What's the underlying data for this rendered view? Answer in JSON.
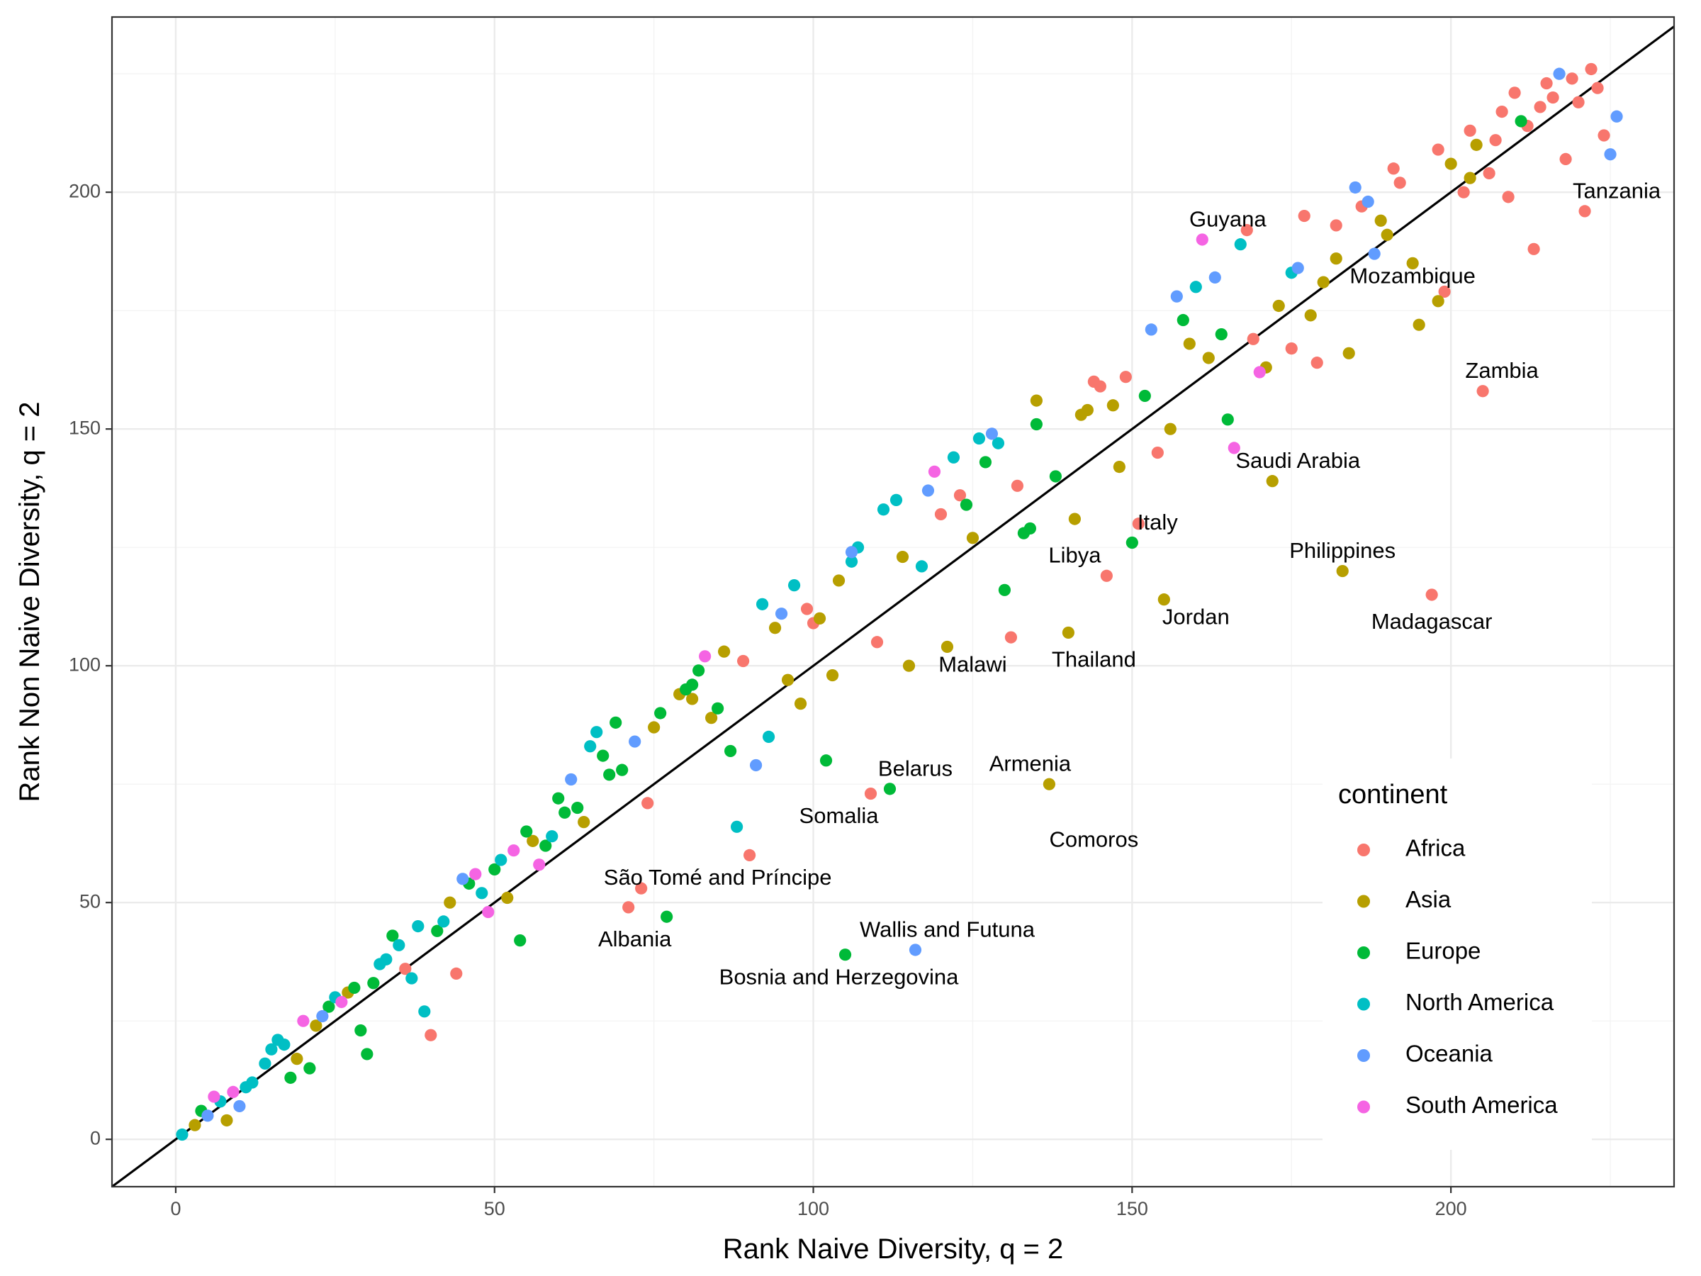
{
  "chart_data": {
    "type": "scatter",
    "xlabel": "Rank Naive Diversity, q = 2",
    "ylabel": "Rank Non Naive Diversity, q = 2",
    "xlim": [
      -10,
      235
    ],
    "ylim": [
      -10,
      237
    ],
    "x_ticks": [
      0,
      50,
      100,
      150,
      200
    ],
    "y_ticks": [
      0,
      50,
      100,
      150,
      200
    ],
    "grid": true,
    "reference_line": "y = x",
    "legend": {
      "title": "continent",
      "placement": "right-bottom inside",
      "entries": [
        {
          "name": "Africa",
          "color": "#F8766D"
        },
        {
          "name": "Asia",
          "color": "#B79F00"
        },
        {
          "name": "Europe",
          "color": "#00BA38"
        },
        {
          "name": "North America",
          "color": "#00BFC4"
        },
        {
          "name": "Oceania",
          "color": "#619CFF"
        },
        {
          "name": "South America",
          "color": "#F564E3"
        }
      ]
    },
    "series": [
      {
        "name": "Africa",
        "color": "#F8766D",
        "points": [
          [
            36,
            36
          ],
          [
            40,
            22
          ],
          [
            44,
            35
          ],
          [
            71,
            49
          ],
          [
            73,
            53
          ],
          [
            74,
            71
          ],
          [
            90,
            60
          ],
          [
            109,
            73
          ],
          [
            89,
            101
          ],
          [
            99,
            112
          ],
          [
            100,
            109
          ],
          [
            110,
            105
          ],
          [
            120,
            132
          ],
          [
            123,
            136
          ],
          [
            131,
            106
          ],
          [
            132,
            138
          ],
          [
            144,
            160
          ],
          [
            145,
            159
          ],
          [
            146,
            119
          ],
          [
            149,
            161
          ],
          [
            151,
            130
          ],
          [
            154,
            145
          ],
          [
            168,
            192
          ],
          [
            169,
            169
          ],
          [
            175,
            167
          ],
          [
            177,
            195
          ],
          [
            179,
            164
          ],
          [
            182,
            193
          ],
          [
            186,
            197
          ],
          [
            191,
            205
          ],
          [
            192,
            202
          ],
          [
            197,
            115
          ],
          [
            198,
            209
          ],
          [
            199,
            179
          ],
          [
            202,
            200
          ],
          [
            203,
            213
          ],
          [
            205,
            158
          ],
          [
            206,
            204
          ],
          [
            207,
            211
          ],
          [
            208,
            217
          ],
          [
            209,
            199
          ],
          [
            210,
            221
          ],
          [
            212,
            214
          ],
          [
            213,
            188
          ],
          [
            214,
            218
          ],
          [
            215,
            223
          ],
          [
            216,
            220
          ],
          [
            218,
            207
          ],
          [
            219,
            224
          ],
          [
            220,
            219
          ],
          [
            221,
            196
          ],
          [
            222,
            226
          ],
          [
            223,
            222
          ],
          [
            224,
            212
          ]
        ]
      },
      {
        "name": "Asia",
        "color": "#B79F00",
        "points": [
          [
            3,
            3
          ],
          [
            8,
            4
          ],
          [
            19,
            17
          ],
          [
            22,
            24
          ],
          [
            27,
            31
          ],
          [
            43,
            50
          ],
          [
            52,
            51
          ],
          [
            56,
            63
          ],
          [
            64,
            67
          ],
          [
            75,
            87
          ],
          [
            79,
            94
          ],
          [
            81,
            93
          ],
          [
            84,
            89
          ],
          [
            86,
            103
          ],
          [
            94,
            108
          ],
          [
            96,
            97
          ],
          [
            98,
            92
          ],
          [
            101,
            110
          ],
          [
            103,
            98
          ],
          [
            104,
            118
          ],
          [
            114,
            123
          ],
          [
            115,
            100
          ],
          [
            121,
            104
          ],
          [
            125,
            127
          ],
          [
            135,
            156
          ],
          [
            137,
            75
          ],
          [
            140,
            107
          ],
          [
            141,
            131
          ],
          [
            142,
            153
          ],
          [
            143,
            154
          ],
          [
            147,
            155
          ],
          [
            148,
            142
          ],
          [
            155,
            114
          ],
          [
            156,
            150
          ],
          [
            159,
            168
          ],
          [
            162,
            165
          ],
          [
            171,
            163
          ],
          [
            172,
            139
          ],
          [
            173,
            176
          ],
          [
            178,
            174
          ],
          [
            180,
            181
          ],
          [
            182,
            186
          ],
          [
            183,
            120
          ],
          [
            184,
            166
          ],
          [
            189,
            194
          ],
          [
            190,
            191
          ],
          [
            194,
            185
          ],
          [
            195,
            172
          ],
          [
            198,
            177
          ],
          [
            200,
            206
          ],
          [
            203,
            203
          ],
          [
            204,
            210
          ]
        ]
      },
      {
        "name": "Europe",
        "color": "#00BA38",
        "points": [
          [
            4,
            6
          ],
          [
            18,
            13
          ],
          [
            21,
            15
          ],
          [
            24,
            28
          ],
          [
            28,
            32
          ],
          [
            29,
            23
          ],
          [
            30,
            18
          ],
          [
            31,
            33
          ],
          [
            34,
            43
          ],
          [
            41,
            44
          ],
          [
            46,
            54
          ],
          [
            50,
            57
          ],
          [
            54,
            42
          ],
          [
            55,
            65
          ],
          [
            58,
            62
          ],
          [
            60,
            72
          ],
          [
            61,
            69
          ],
          [
            63,
            70
          ],
          [
            67,
            81
          ],
          [
            68,
            77
          ],
          [
            69,
            88
          ],
          [
            70,
            78
          ],
          [
            76,
            90
          ],
          [
            77,
            47
          ],
          [
            80,
            95
          ],
          [
            81,
            96
          ],
          [
            82,
            99
          ],
          [
            85,
            91
          ],
          [
            87,
            82
          ],
          [
            102,
            80
          ],
          [
            105,
            39
          ],
          [
            112,
            74
          ],
          [
            124,
            134
          ],
          [
            127,
            143
          ],
          [
            130,
            116
          ],
          [
            133,
            128
          ],
          [
            134,
            129
          ],
          [
            135,
            151
          ],
          [
            138,
            140
          ],
          [
            150,
            126
          ],
          [
            152,
            157
          ],
          [
            158,
            173
          ],
          [
            164,
            170
          ],
          [
            165,
            152
          ],
          [
            211,
            215
          ]
        ]
      },
      {
        "name": "North America",
        "color": "#00BFC4",
        "points": [
          [
            1,
            1
          ],
          [
            7,
            8
          ],
          [
            11,
            11
          ],
          [
            12,
            12
          ],
          [
            14,
            16
          ],
          [
            15,
            19
          ],
          [
            16,
            21
          ],
          [
            17,
            20
          ],
          [
            25,
            30
          ],
          [
            32,
            37
          ],
          [
            33,
            38
          ],
          [
            35,
            41
          ],
          [
            37,
            34
          ],
          [
            38,
            45
          ],
          [
            39,
            27
          ],
          [
            42,
            46
          ],
          [
            48,
            52
          ],
          [
            51,
            59
          ],
          [
            59,
            64
          ],
          [
            65,
            83
          ],
          [
            66,
            86
          ],
          [
            88,
            66
          ],
          [
            92,
            113
          ],
          [
            93,
            85
          ],
          [
            97,
            117
          ],
          [
            106,
            122
          ],
          [
            107,
            125
          ],
          [
            111,
            133
          ],
          [
            113,
            135
          ],
          [
            117,
            121
          ],
          [
            122,
            144
          ],
          [
            126,
            148
          ],
          [
            129,
            147
          ],
          [
            160,
            180
          ],
          [
            167,
            189
          ],
          [
            175,
            183
          ]
        ]
      },
      {
        "name": "Oceania",
        "color": "#619CFF",
        "points": [
          [
            5,
            5
          ],
          [
            10,
            7
          ],
          [
            23,
            26
          ],
          [
            45,
            55
          ],
          [
            62,
            76
          ],
          [
            72,
            84
          ],
          [
            91,
            79
          ],
          [
            95,
            111
          ],
          [
            106,
            124
          ],
          [
            116,
            40
          ],
          [
            118,
            137
          ],
          [
            128,
            149
          ],
          [
            153,
            171
          ],
          [
            157,
            178
          ],
          [
            163,
            182
          ],
          [
            176,
            184
          ],
          [
            185,
            201
          ],
          [
            187,
            198
          ],
          [
            188,
            187
          ],
          [
            217,
            225
          ],
          [
            225,
            208
          ],
          [
            226,
            216
          ]
        ]
      },
      {
        "name": "South America",
        "color": "#F564E3",
        "points": [
          [
            6,
            9
          ],
          [
            9,
            10
          ],
          [
            20,
            25
          ],
          [
            26,
            29
          ],
          [
            47,
            56
          ],
          [
            49,
            48
          ],
          [
            53,
            61
          ],
          [
            57,
            58
          ],
          [
            83,
            102
          ],
          [
            119,
            141
          ],
          [
            161,
            190
          ],
          [
            166,
            146
          ],
          [
            170,
            162
          ]
        ]
      }
    ],
    "annotations": [
      {
        "text": "Guyana",
        "x": 165,
        "y": 194
      },
      {
        "text": "Tanzania",
        "x": 226,
        "y": 200
      },
      {
        "text": "Mozambique",
        "x": 194,
        "y": 182
      },
      {
        "text": "Zambia",
        "x": 208,
        "y": 162
      },
      {
        "text": "Saudi Arabia",
        "x": 176,
        "y": 143
      },
      {
        "text": "Italy",
        "x": 154,
        "y": 130
      },
      {
        "text": "Libya",
        "x": 141,
        "y": 123
      },
      {
        "text": "Philippines",
        "x": 183,
        "y": 124
      },
      {
        "text": "Jordan",
        "x": 160,
        "y": 110
      },
      {
        "text": "Madagascar",
        "x": 197,
        "y": 109
      },
      {
        "text": "Malawi",
        "x": 125,
        "y": 100
      },
      {
        "text": "Thailand",
        "x": 144,
        "y": 101
      },
      {
        "text": "Belarus",
        "x": 116,
        "y": 78
      },
      {
        "text": "Armenia",
        "x": 134,
        "y": 79
      },
      {
        "text": "Somalia",
        "x": 104,
        "y": 68
      },
      {
        "text": "Comoros",
        "x": 144,
        "y": 63
      },
      {
        "text": "São Tomé and Príncipe",
        "x": 85,
        "y": 55
      },
      {
        "text": "Albania",
        "x": 72,
        "y": 42
      },
      {
        "text": "Wallis and Futuna",
        "x": 121,
        "y": 44
      },
      {
        "text": "Bosnia and Herzegovina",
        "x": 104,
        "y": 34
      }
    ]
  }
}
